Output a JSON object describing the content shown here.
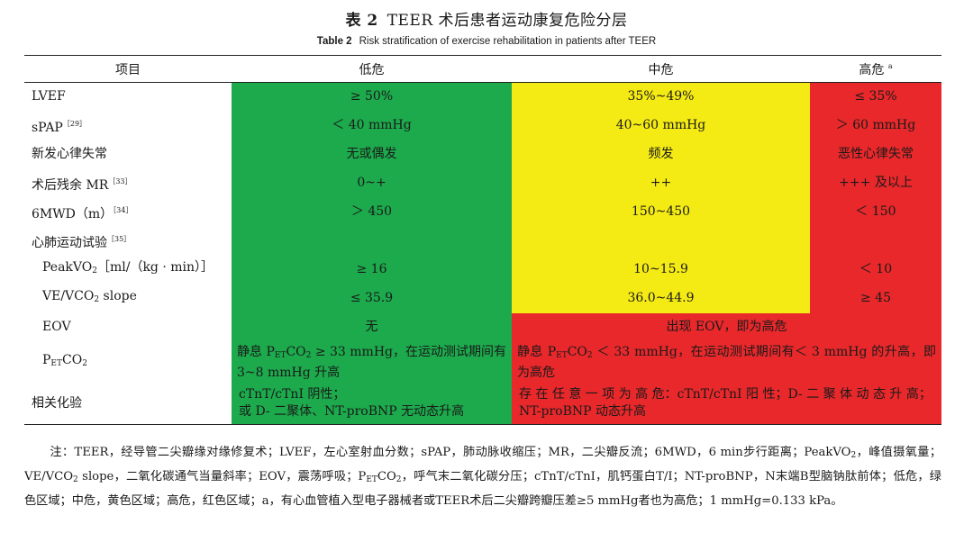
{
  "title": {
    "number": "表 2",
    "text": "TEER 术后患者运动康复危险分层"
  },
  "subtitle": {
    "number": "Table 2",
    "text": "Risk stratification of exercise rehabilitation in patients after TEER"
  },
  "colors": {
    "low": "#1caa4c",
    "mid": "#f5eb14",
    "high": "#e8282b"
  },
  "header": {
    "item": "项目",
    "low": "低危",
    "mid": "中危",
    "high": "高危",
    "high_sup": "a"
  },
  "rows": {
    "lvef": {
      "label": "LVEF",
      "low": "≥ 50%",
      "mid": "35%~49%",
      "high": "≤ 35%"
    },
    "spap": {
      "label": "sPAP",
      "ref": "［29］",
      "low": "＜ 40 mmHg",
      "mid": "40~60 mmHg",
      "high": "＞ 60 mmHg"
    },
    "arr": {
      "label": "新发心律失常",
      "low": "无或偶发",
      "mid": "频发",
      "high": "恶性心律失常"
    },
    "mr": {
      "label": "术后残余 MR",
      "ref": "［33］",
      "low": "0~+",
      "mid": "++",
      "high": "+++ 及以上"
    },
    "mwd": {
      "label": "6MWD（m）",
      "ref": "［34］",
      "low": "＞ 450",
      "mid": "150~450",
      "high": "＜ 150"
    },
    "cpet": {
      "label": "心肺运动试验",
      "ref": "［35］"
    },
    "peak": {
      "label_a": "PeakVO",
      "label_b": "［ml/（kg · min）］",
      "low": "≥ 16",
      "mid": "10~15.9",
      "high": "＜ 10"
    },
    "ve": {
      "label_a": "VE/VCO",
      "label_b": " slope",
      "low": "≤ 35.9",
      "mid": "36.0~44.9",
      "high": "≥ 45"
    },
    "eov": {
      "label": "EOV",
      "low": "无",
      "midhigh": "出现 EOV，即为高危"
    },
    "petco2": {
      "label_p": "P",
      "label_et": "ET",
      "label_co": "CO",
      "low_a": "静息 P",
      "low_b": "CO",
      "low_c": " ≥ 33 mmHg，在运动测试期间有 3~8 mmHg 升高",
      "mh_a": "静息 P",
      "mh_b": "CO",
      "mh_c": " ＜ 33 mmHg，在运动测试期间有＜ 3 mmHg 的升高，即为高危"
    },
    "lab": {
      "label": "相关化验",
      "low_1": "cTnT/cTnI 阴性；",
      "low_2": "或 D- 二聚体、NT-proBNP 无动态升高",
      "mh_1": "存 在 任 意 一 项 为 高 危：cTnT/cTnI 阳 性；D- 二 聚 体 动 态 升 高；",
      "mh_2": "NT-proBNP 动态升高"
    }
  },
  "note": {
    "p1": "注：TEER，经导管二尖瓣缘对缘修复术；LVEF，左心室射血分数；sPAP，肺动脉收缩压；MR，二尖瓣反流；6MWD，6 min步行距离；PeakVO",
    "p2": "，峰值摄氧量；VE/VCO",
    "p3": " slope，二氧化碳通气当量斜率；EOV，震荡呼吸；P",
    "p4": "CO",
    "p5": "，呼气末二氧化碳分压；cTnT/cTnI，肌钙蛋白T/I；NT-proBNP，N末端B型脑钠肽前体；低危，绿色区域；中危，黄色区域；高危，红色区域；a，有心血管植入型电子器械者或TEER术后二尖瓣跨瓣压差≥5 mmHg者也为高危；1 mmHg=0.133 kPa。"
  }
}
